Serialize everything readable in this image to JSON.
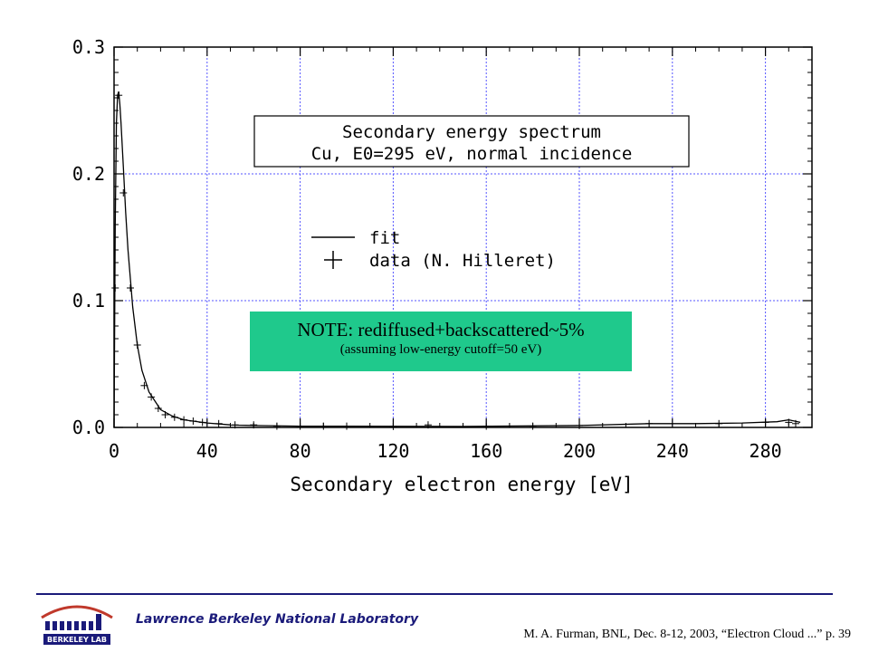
{
  "chart_data": {
    "type": "line",
    "xlabel": "Secondary electron energy [eV]",
    "ylabel": "",
    "xlim": [
      0,
      300
    ],
    "ylim": [
      0,
      0.3
    ],
    "x_ticks": [
      "0",
      "40",
      "80",
      "120",
      "160",
      "200",
      "240",
      "280"
    ],
    "y_ticks": [
      "0.0",
      "0.1",
      "0.2",
      "0.3"
    ],
    "grid": true,
    "title_box": [
      "Secondary energy spectrum",
      "Cu, E0=295 eV, normal incidence"
    ],
    "legend": [
      {
        "symbol": "line",
        "label": "fit"
      },
      {
        "symbol": "plus",
        "label": "data (N. Hilleret)"
      }
    ],
    "series": [
      {
        "name": "fit",
        "x": [
          0,
          0.5,
          1,
          1.5,
          2,
          2.5,
          3,
          4,
          5,
          6,
          8,
          10,
          12,
          15,
          20,
          25,
          30,
          40,
          50,
          60,
          80,
          100,
          150,
          200,
          230,
          250,
          270,
          285,
          290,
          295
        ],
        "y": [
          0.0,
          0.16,
          0.24,
          0.262,
          0.265,
          0.255,
          0.24,
          0.205,
          0.17,
          0.14,
          0.095,
          0.065,
          0.045,
          0.028,
          0.014,
          0.009,
          0.006,
          0.0035,
          0.002,
          0.0015,
          0.001,
          0.001,
          0.0008,
          0.0015,
          0.003,
          0.003,
          0.0035,
          0.0045,
          0.006,
          0.004
        ]
      },
      {
        "name": "data (N. Hilleret)",
        "x": [
          0.5,
          2,
          4,
          7,
          10,
          13,
          16,
          19,
          22,
          26,
          30,
          34,
          38,
          45,
          52,
          60,
          70,
          80,
          90,
          100,
          120,
          135,
          160,
          180,
          200,
          230,
          260,
          280,
          290,
          293
        ],
        "y": [
          0.11,
          0.262,
          0.185,
          0.11,
          0.065,
          0.033,
          0.024,
          0.015,
          0.01,
          0.008,
          0.006,
          0.005,
          0.004,
          0.003,
          0.002,
          0.002,
          0.001,
          0.001,
          0.001,
          0.001,
          0.0008,
          0.002,
          0.001,
          0.001,
          0.0015,
          0.003,
          0.003,
          0.004,
          0.004,
          0.003
        ]
      }
    ]
  },
  "note": {
    "main": "NOTE: rediffused+backscattered~5%",
    "sub": "(assuming low-energy cutoff=50 eV)"
  },
  "footer": {
    "lab": "Lawrence Berkeley National Laboratory",
    "citation": "M. A. Furman, BNL, Dec. 8-12, 2003, “Electron Cloud ...”  p. 39",
    "logo_text": "BERKELEY LAB"
  },
  "colors": {
    "grid": "#5555ff",
    "note_bg": "#1fc98c",
    "footer_rule": "#1a1a7a"
  }
}
